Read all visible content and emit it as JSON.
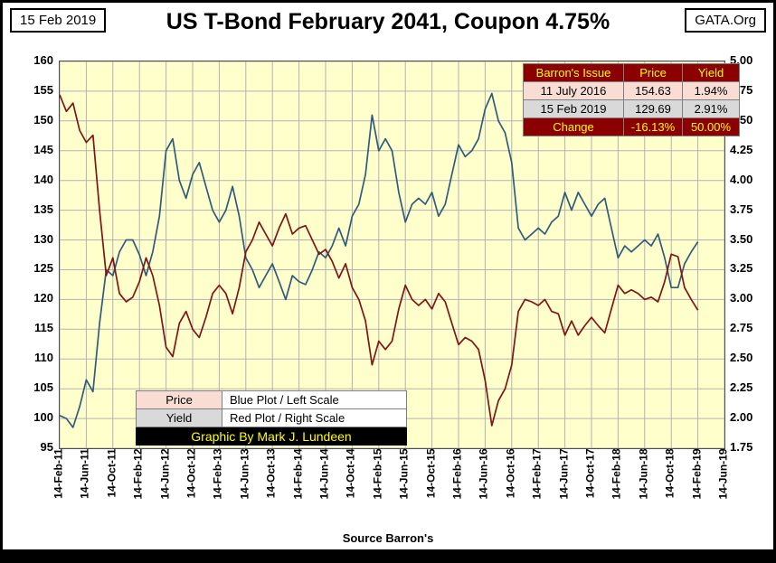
{
  "header": {
    "date_box": "15 Feb 2019",
    "title": "US T-Bond February 2041, Coupon 4.75%",
    "brand_box": "GATA.Org"
  },
  "footer": {
    "source": "Source Barron's"
  },
  "info_table": {
    "headers": [
      "Barron's Issue",
      "Price",
      "Yield"
    ],
    "rows": [
      {
        "label": "11 July 2016",
        "price": "154.63",
        "yield": "1.94%"
      },
      {
        "label": "15 Feb 2019",
        "price": "129.69",
        "yield": "2.91%"
      },
      {
        "label": "Change",
        "price": "-16.13%",
        "yield": "50.00%"
      }
    ]
  },
  "legend": {
    "rows": [
      {
        "key": "Price",
        "desc": "Blue Plot / Left Scale"
      },
      {
        "key": "Yield",
        "desc": "Red Plot / Right Scale"
      }
    ],
    "credit": "Graphic By Mark J. Lundeen"
  },
  "colors": {
    "price_line": "#2e5c7c",
    "yield_line": "#811417",
    "plot_bg": "#ffffcc",
    "grid": "#b2b2b2",
    "table_header_bg": "#8b0000",
    "accent_yellow": "#ffff00",
    "pink_cell": "#f9dcd3",
    "gray_cell": "#d9d9d9"
  },
  "chart_data": {
    "type": "line",
    "title": "US T-Bond February 2041, Coupon 4.75%",
    "x_unit": "months since 14-Feb-2011, Barron's weekly issues",
    "x_axis": {
      "months_total": 100,
      "tick_interval_months": 4
    },
    "x_tick_labels": [
      "14-Feb-11",
      "14-Jun-11",
      "14-Oct-11",
      "14-Feb-12",
      "14-Jun-12",
      "14-Oct-12",
      "14-Feb-13",
      "14-Jun-13",
      "14-Oct-13",
      "14-Feb-14",
      "14-Jun-14",
      "14-Oct-14",
      "14-Feb-15",
      "14-Jun-15",
      "14-Oct-15",
      "14-Feb-16",
      "14-Jun-16",
      "14-Oct-16",
      "14-Feb-17",
      "14-Jun-17",
      "14-Oct-17",
      "14-Feb-18",
      "14-Jun-18",
      "14-Oct-18",
      "14-Feb-19",
      "14-Jun-19"
    ],
    "left_axis": {
      "label": "Price",
      "min": 95,
      "max": 160,
      "step": 5
    },
    "right_axis": {
      "label": "Yield",
      "min": 1.75,
      "max": 5.0,
      "step": 0.25
    },
    "grid": true,
    "legend_position": "bottom-left-inside",
    "series": [
      {
        "name": "Price",
        "legend": "Blue Plot / Left Scale",
        "axis": "left",
        "color": "#2e5c7c",
        "values": [
          100.5,
          100,
          98.5,
          102,
          106.5,
          104.5,
          116,
          125,
          124,
          128,
          130,
          130,
          127.5,
          124,
          128,
          134,
          145,
          147,
          140,
          137,
          141,
          143,
          139,
          135,
          133,
          135,
          139,
          134,
          127,
          125,
          122,
          124,
          126,
          123,
          120,
          124,
          123,
          122.5,
          125,
          128,
          127,
          129,
          132,
          129,
          134,
          136,
          141,
          151,
          145,
          147,
          145,
          138,
          133,
          136,
          137,
          136,
          138,
          134,
          136,
          141,
          146,
          144,
          145,
          147,
          152,
          154.63,
          150,
          148,
          143,
          132,
          130,
          131,
          132,
          131,
          133,
          134,
          138,
          135,
          138,
          136,
          134,
          136,
          137,
          132,
          127,
          129,
          128,
          129,
          130,
          129,
          131,
          127,
          122,
          122,
          126,
          128,
          129.69
        ]
      },
      {
        "name": "Yield",
        "legend": "Red Plot / Right Scale",
        "axis": "right",
        "color": "#811417",
        "values": [
          4.72,
          4.58,
          4.65,
          4.42,
          4.32,
          4.38,
          3.75,
          3.2,
          3.35,
          3.05,
          2.98,
          3.02,
          3.15,
          3.35,
          3.2,
          2.95,
          2.6,
          2.52,
          2.8,
          2.9,
          2.75,
          2.68,
          2.85,
          3.05,
          3.12,
          3.05,
          2.88,
          3.1,
          3.4,
          3.5,
          3.65,
          3.55,
          3.45,
          3.6,
          3.72,
          3.55,
          3.6,
          3.62,
          3.5,
          3.38,
          3.42,
          3.32,
          3.18,
          3.3,
          3.1,
          3.0,
          2.82,
          2.45,
          2.65,
          2.58,
          2.65,
          2.92,
          3.12,
          3.0,
          2.95,
          3.0,
          2.92,
          3.05,
          2.98,
          2.8,
          2.62,
          2.68,
          2.65,
          2.58,
          2.32,
          1.94,
          2.15,
          2.25,
          2.45,
          2.9,
          3.0,
          2.98,
          2.95,
          3.0,
          2.9,
          2.88,
          2.7,
          2.82,
          2.7,
          2.78,
          2.85,
          2.78,
          2.72,
          2.92,
          3.12,
          3.05,
          3.08,
          3.05,
          3.0,
          3.02,
          2.98,
          3.15,
          3.38,
          3.36,
          3.1,
          3.0,
          2.91
        ]
      }
    ]
  }
}
